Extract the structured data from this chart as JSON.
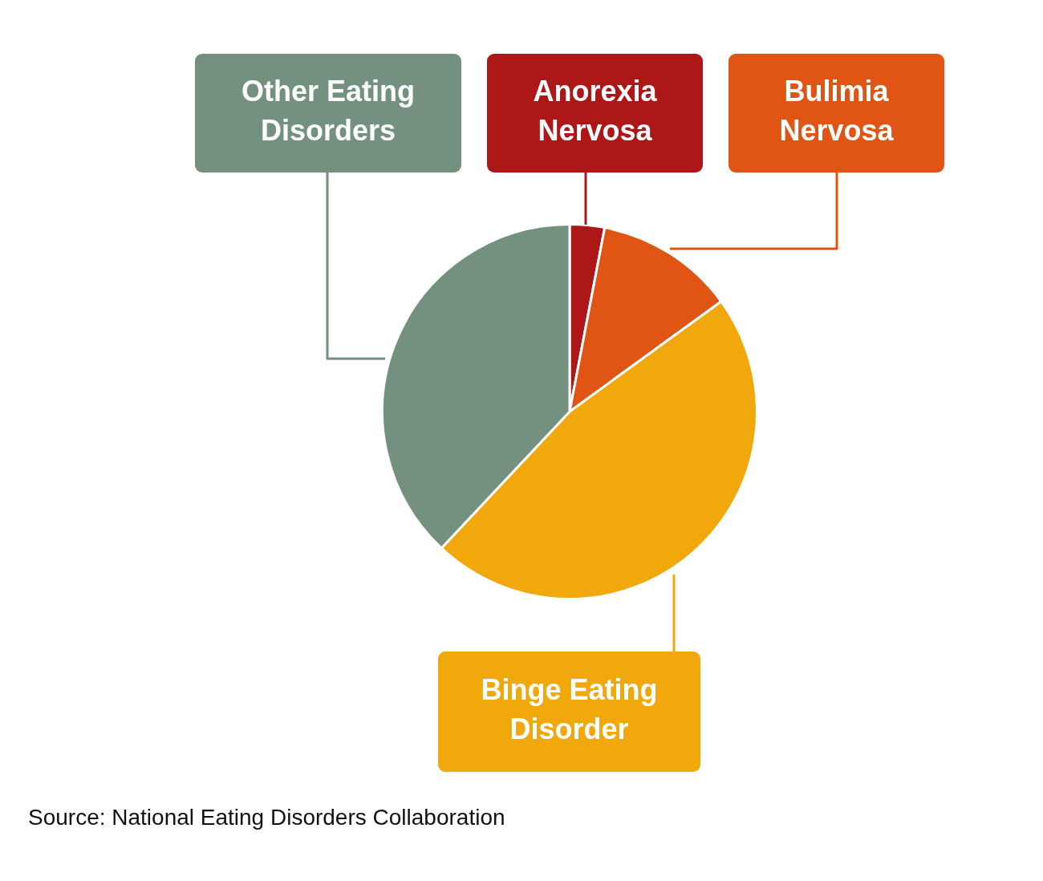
{
  "chart_data": {
    "type": "pie",
    "categories": [
      "Anorexia Nervosa",
      "Bulimia Nervosa",
      "Binge Eating Disorder",
      "Other Eating Disorders"
    ],
    "values": [
      3,
      12,
      47,
      38
    ],
    "colors": [
      "#ae1717",
      "#e05414",
      "#f0a80c",
      "#73917e"
    ],
    "legend": false,
    "annotations": [
      "Source: National Eating Disorders Collaboration"
    ]
  }
}
